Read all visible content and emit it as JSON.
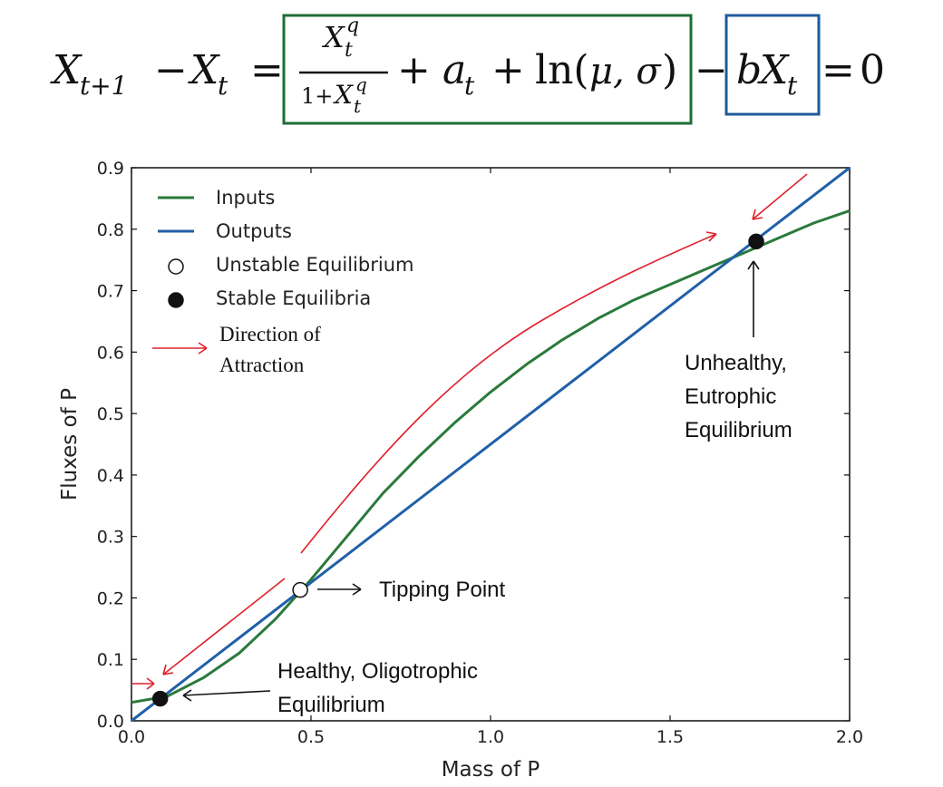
{
  "equation": {
    "lhs_x1": "X",
    "lhs_sub1": "t+1",
    "minus1": "−",
    "lhs_x2": "X",
    "lhs_sub2": "t",
    "equals1": "=",
    "frac_num_x": "X",
    "frac_num_sub": "t",
    "frac_num_sup": "q",
    "frac_den_one": "1+",
    "frac_den_x": "X",
    "frac_den_sub": "t",
    "frac_den_sup": "q",
    "plus1": "+",
    "a": "a",
    "a_sub": "t",
    "plus2": "+",
    "ln": "ln(",
    "mu_sigma": "μ, σ",
    "close_paren": ")",
    "minus2": "−",
    "b": "b",
    "bx": "X",
    "bx_sub": "t",
    "equals2": "=",
    "zero": "0",
    "input_box_color": "#1e6e35",
    "output_box_color": "#1f5a9c"
  },
  "annotations": {
    "tipping_point": "Tipping Point",
    "healthy_line1": "Healthy, Oligotrophic",
    "healthy_line2": "Equilibrium",
    "unhealthy_line1": "Unhealthy,",
    "unhealthy_line2": "Eutrophic",
    "unhealthy_line3": "Equilibrium",
    "direction_line1": "Direction of",
    "direction_line2": "Attraction",
    "direction_color": "#e0202a"
  },
  "chart_data": {
    "type": "line",
    "xlabel": "Mass of P",
    "ylabel": "Fluxes of P",
    "xlim": [
      0.0,
      2.0
    ],
    "ylim": [
      0.0,
      0.9
    ],
    "xticks": [
      "0.0",
      "0.5",
      "1.0",
      "1.5",
      "2.0"
    ],
    "yticks": [
      "0.0",
      "0.1",
      "0.2",
      "0.3",
      "0.4",
      "0.5",
      "0.6",
      "0.7",
      "0.8",
      "0.9"
    ],
    "legend_position": "top-left",
    "grid": false,
    "series": [
      {
        "name": "Inputs",
        "color": "#2a7a3b",
        "x": [
          0.0,
          0.1,
          0.2,
          0.3,
          0.4,
          0.5,
          0.6,
          0.7,
          0.8,
          0.9,
          1.0,
          1.1,
          1.2,
          1.3,
          1.4,
          1.5,
          1.6,
          1.7,
          1.8,
          1.9,
          2.0
        ],
        "y": [
          0.03,
          0.04,
          0.07,
          0.11,
          0.165,
          0.23,
          0.3,
          0.37,
          0.43,
          0.485,
          0.535,
          0.58,
          0.62,
          0.655,
          0.685,
          0.71,
          0.735,
          0.76,
          0.785,
          0.81,
          0.83
        ]
      },
      {
        "name": "Outputs",
        "color": "#2060a8",
        "x": [
          0.0,
          2.0
        ],
        "y": [
          0.0,
          0.9
        ]
      }
    ],
    "points": [
      {
        "name": "Unstable Equilibrium",
        "x": 0.47,
        "y": 0.213,
        "filled": false
      },
      {
        "name": "Stable Equilibria",
        "x": 0.08,
        "y": 0.036,
        "filled": true
      },
      {
        "name": "Stable Equilibria",
        "x": 1.74,
        "y": 0.78,
        "filled": true
      }
    ],
    "legend": [
      {
        "label": "Inputs",
        "kind": "line",
        "color": "#2a7a3b"
      },
      {
        "label": "Outputs",
        "kind": "line",
        "color": "#2060a8"
      },
      {
        "label": "Unstable Equilibrium",
        "kind": "open"
      },
      {
        "label": "Stable Equilibria",
        "kind": "filled"
      }
    ]
  }
}
